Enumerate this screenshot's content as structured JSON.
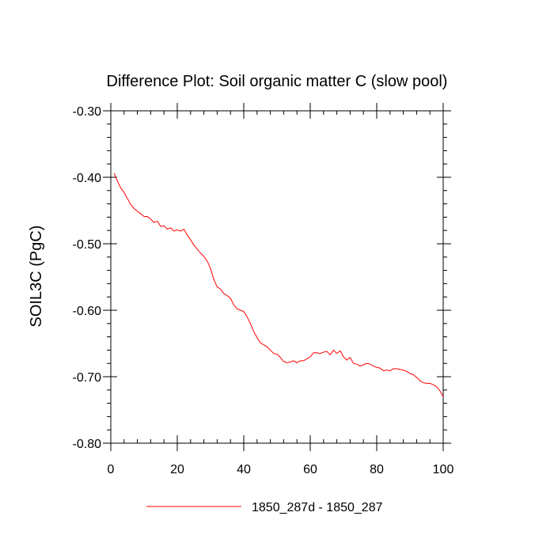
{
  "chart_data": {
    "type": "line",
    "title": "Difference Plot: Soil organic matter C (slow pool)",
    "xlabel": "",
    "ylabel": "SOIL3C  (PgC)",
    "xlim": [
      0,
      100
    ],
    "ylim": [
      -0.8,
      -0.3
    ],
    "x_ticks": [
      0,
      20,
      40,
      60,
      80,
      100
    ],
    "x_tick_labels": [
      "0",
      "20",
      "40",
      "60",
      "80",
      "100"
    ],
    "y_ticks": [
      -0.3,
      -0.4,
      -0.5,
      -0.6,
      -0.7,
      -0.8
    ],
    "y_tick_labels": [
      "-0.30",
      "-0.40",
      "-0.50",
      "-0.60",
      "-0.70",
      "-0.80"
    ],
    "legend_position": "bottom-center",
    "series": [
      {
        "name": "1850_287d - 1850_287",
        "color": "#ff0000",
        "x": [
          1,
          2,
          3,
          4,
          5,
          6,
          7,
          8,
          9,
          10,
          11,
          12,
          13,
          14,
          15,
          16,
          17,
          18,
          19,
          20,
          21,
          22,
          23,
          24,
          25,
          26,
          27,
          28,
          29,
          30,
          31,
          32,
          33,
          34,
          35,
          36,
          37,
          38,
          39,
          40,
          41,
          42,
          43,
          44,
          45,
          46,
          47,
          48,
          49,
          50,
          51,
          52,
          53,
          54,
          55,
          56,
          57,
          58,
          59,
          60,
          61,
          62,
          63,
          64,
          65,
          66,
          67,
          68,
          69,
          70,
          71,
          72,
          73,
          74,
          75,
          76,
          77,
          78,
          79,
          80,
          81,
          82,
          83,
          84,
          85,
          86,
          87,
          88,
          89,
          90,
          91,
          92,
          93,
          94,
          95,
          96,
          97,
          98,
          99,
          100
        ],
        "values": [
          -0.394,
          -0.406,
          -0.416,
          -0.423,
          -0.432,
          -0.441,
          -0.447,
          -0.451,
          -0.455,
          -0.459,
          -0.459,
          -0.463,
          -0.468,
          -0.466,
          -0.474,
          -0.473,
          -0.478,
          -0.476,
          -0.481,
          -0.479,
          -0.481,
          -0.478,
          -0.487,
          -0.494,
          -0.502,
          -0.508,
          -0.514,
          -0.519,
          -0.526,
          -0.537,
          -0.554,
          -0.565,
          -0.568,
          -0.575,
          -0.578,
          -0.582,
          -0.592,
          -0.598,
          -0.6,
          -0.602,
          -0.61,
          -0.62,
          -0.632,
          -0.641,
          -0.649,
          -0.652,
          -0.655,
          -0.66,
          -0.665,
          -0.666,
          -0.671,
          -0.677,
          -0.679,
          -0.678,
          -0.676,
          -0.679,
          -0.676,
          -0.676,
          -0.673,
          -0.67,
          -0.664,
          -0.664,
          -0.665,
          -0.663,
          -0.662,
          -0.667,
          -0.66,
          -0.665,
          -0.661,
          -0.67,
          -0.675,
          -0.671,
          -0.68,
          -0.681,
          -0.684,
          -0.682,
          -0.68,
          -0.681,
          -0.684,
          -0.686,
          -0.687,
          -0.691,
          -0.69,
          -0.691,
          -0.688,
          -0.688,
          -0.689,
          -0.69,
          -0.692,
          -0.695,
          -0.697,
          -0.701,
          -0.706,
          -0.709,
          -0.71,
          -0.71,
          -0.712,
          -0.715,
          -0.721,
          -0.73
        ]
      }
    ]
  }
}
